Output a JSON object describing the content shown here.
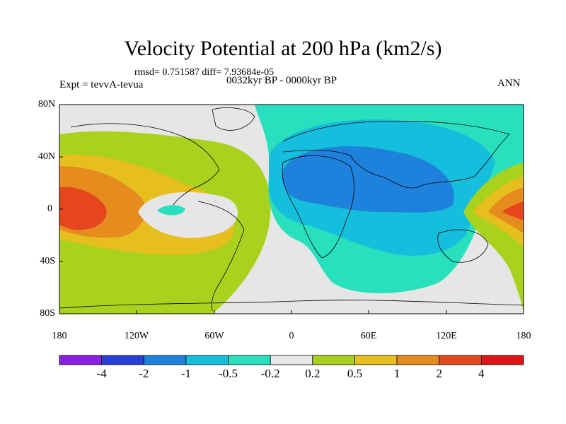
{
  "title": "Velocity Potential at 200 hPa (km2/s)",
  "stats_line": "rmsd= 0.751587 diff= 7.93684e-05",
  "left_label": "Expt = tevvA-tevua",
  "center_label": "0032kyr BP - 0000kyr BP",
  "right_label": "ANN",
  "lat_ticks": [
    "80N",
    "40N",
    "0",
    "40S",
    "80S"
  ],
  "lon_ticks": [
    "180",
    "120W",
    "60W",
    "0",
    "60E",
    "120E",
    "180"
  ],
  "colorbar": {
    "labels": [
      "-4",
      "-2",
      "-1",
      "-0.5",
      "-0.2",
      "0.2",
      "0.5",
      "1",
      "2",
      "4"
    ],
    "colors": [
      "#8a1ee6",
      "#2a3fd6",
      "#1e82dc",
      "#14bedc",
      "#28e0be",
      "#e6e6e6",
      "#a8d21e",
      "#e6be1e",
      "#e68c1e",
      "#e6461e",
      "#e01414"
    ]
  }
}
